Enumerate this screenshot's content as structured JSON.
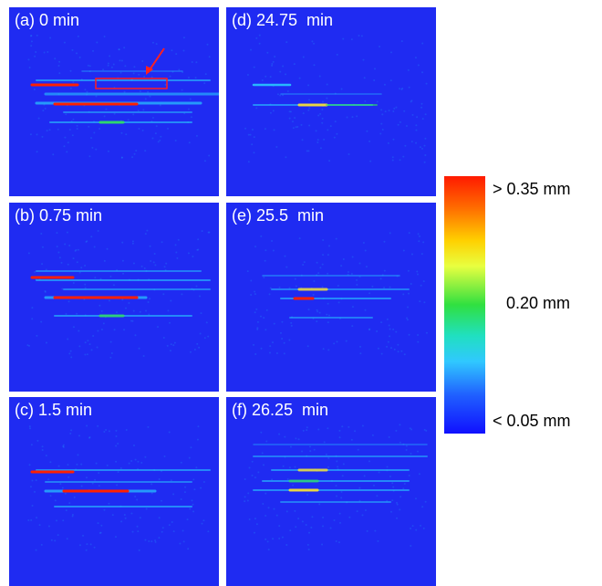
{
  "panels": [
    {
      "label": "(a) 0 min"
    },
    {
      "label": "(b) 0.75 min"
    },
    {
      "label": "(c) 1.5 min"
    },
    {
      "label": "(d) 24.75  min"
    },
    {
      "label": "(e) 25.5  min"
    },
    {
      "label": "(f) 26.25  min"
    }
  ],
  "colorbar": {
    "top_label": "> 0.35 mm",
    "mid_label": "0.20 mm",
    "bottom_label": "< 0.05 mm"
  }
}
